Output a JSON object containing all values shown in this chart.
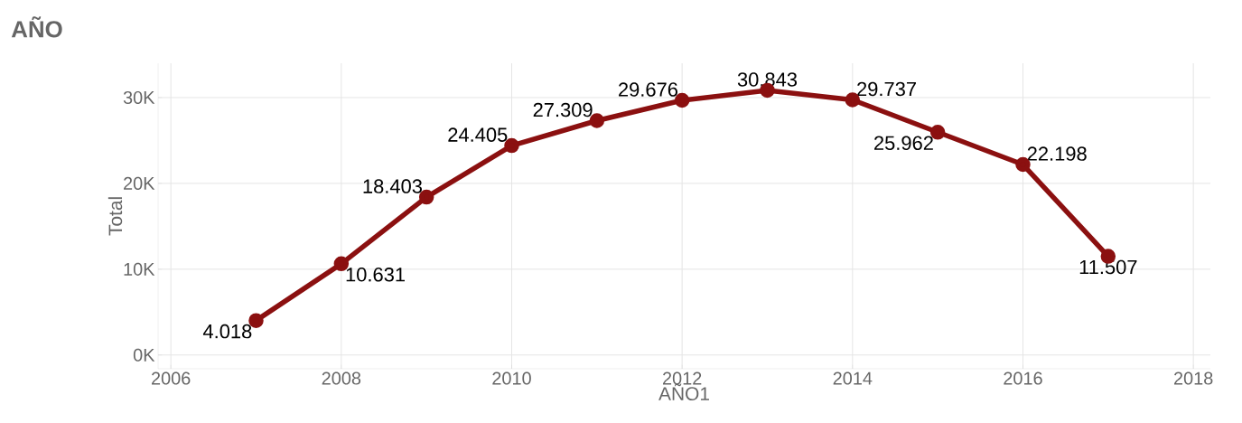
{
  "chart_data": {
    "type": "line",
    "title": "AÑO",
    "xlabel": "AÑO1",
    "ylabel": "Total",
    "x": [
      2007,
      2008,
      2009,
      2010,
      2011,
      2012,
      2013,
      2014,
      2015,
      2016,
      2017
    ],
    "series": [
      {
        "color": "#8b1010",
        "values": [
          4018,
          10631,
          18403,
          24405,
          27309,
          29676,
          30843,
          29737,
          25962,
          22198,
          11507
        ],
        "value_labels": [
          "4.018",
          "10.631",
          "18.403",
          "24.405",
          "27.309",
          "29.676",
          "30.843",
          "29.737",
          "25.962",
          "22.198",
          "11.507"
        ]
      }
    ],
    "xlim": [
      2005.85,
      2018.2
    ],
    "ylim": [
      -1600,
      34000
    ],
    "xticks": [
      2006,
      2008,
      2010,
      2012,
      2014,
      2016,
      2018
    ],
    "yticks": [
      {
        "value": 0,
        "label": "0K"
      },
      {
        "value": 10000,
        "label": "10K"
      },
      {
        "value": 20000,
        "label": "20K"
      },
      {
        "value": 30000,
        "label": "30K"
      }
    ],
    "grid": true,
    "marker": "circle",
    "line_style": "solid"
  }
}
